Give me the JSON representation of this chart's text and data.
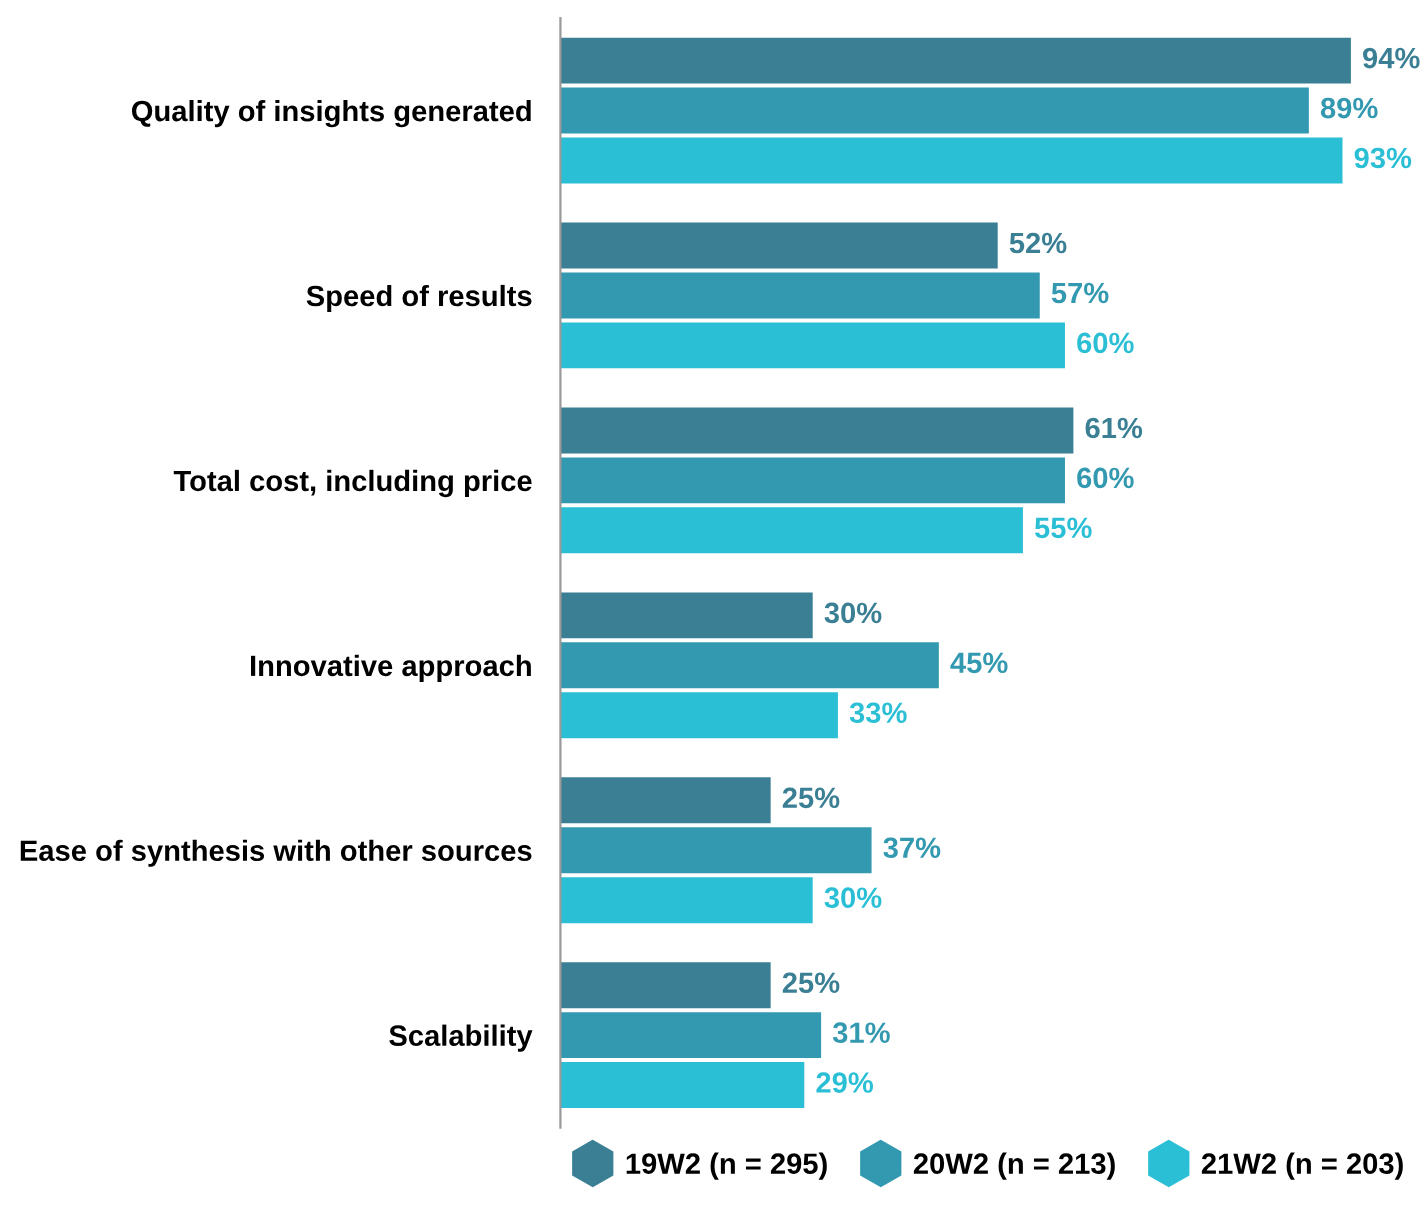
{
  "chart_data": {
    "type": "bar",
    "orientation": "horizontal",
    "categories": [
      "Quality of insights generated",
      "Speed of results",
      "Total cost, including price",
      "Innovative approach",
      "Ease of synthesis with other sources",
      "Scalability"
    ],
    "series": [
      {
        "name": "19W2 (n = 295)",
        "color": "#3a7f94",
        "values": [
          94,
          52,
          61,
          30,
          25,
          25
        ],
        "value_labels": [
          "94%",
          "52%",
          "61%",
          "30%",
          "25%",
          "25%"
        ]
      },
      {
        "name": "20W2 (n = 213)",
        "color": "#3399b0",
        "values": [
          89,
          57,
          60,
          45,
          37,
          31
        ],
        "value_labels": [
          "89%",
          "57%",
          "60%",
          "45%",
          "37%",
          "31%"
        ]
      },
      {
        "name": "21W2 (n = 203)",
        "color": "#2bbfd6",
        "values": [
          93,
          60,
          55,
          33,
          30,
          29
        ],
        "value_labels": [
          "93%",
          "60%",
          "55%",
          "33%",
          "30%",
          "29%"
        ]
      }
    ],
    "legend": "bottom",
    "grid": false,
    "tick_labels": "y"
  }
}
